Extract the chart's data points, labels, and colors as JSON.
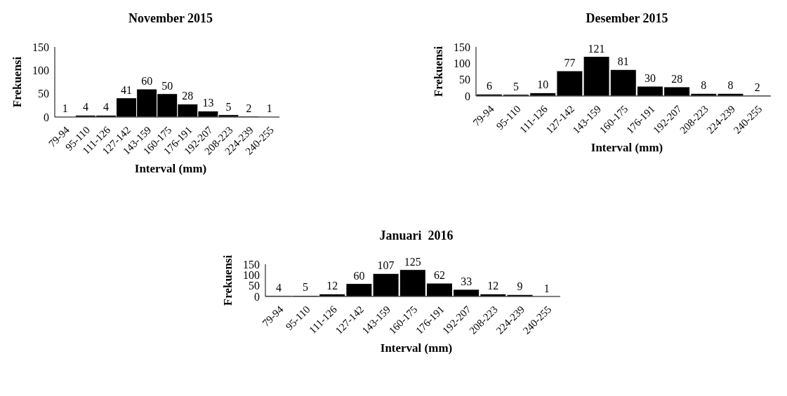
{
  "chart_data": [
    {
      "type": "bar",
      "title": "November 2015",
      "xlabel": "Interval (mm)",
      "ylabel": "Frekuensi",
      "categories": [
        "79-94",
        "95-110",
        "111-126",
        "127-142",
        "143-159",
        "160-175",
        "176-191",
        "192-207",
        "208-223",
        "224-239",
        "240-255"
      ],
      "values": [
        1,
        4,
        4,
        41,
        60,
        50,
        28,
        13,
        5,
        2,
        1
      ],
      "color": "#000000",
      "ylim": [
        0,
        150
      ],
      "yticks": [
        0,
        50,
        100,
        150
      ],
      "grid": false,
      "legend": false,
      "data_labels": true
    },
    {
      "type": "bar",
      "title": "Desember 2015",
      "xlabel": "Interval (mm)",
      "ylabel": "Frekuensi",
      "categories": [
        "79-94",
        "95-110",
        "111-126",
        "127-142",
        "143-159",
        "160-175",
        "176-191",
        "192-207",
        "208-223",
        "224-239",
        "240-255"
      ],
      "values": [
        6,
        5,
        10,
        77,
        121,
        81,
        30,
        28,
        8,
        8,
        2
      ],
      "color": "#000000",
      "ylim": [
        0,
        150
      ],
      "yticks": [
        0,
        50,
        100,
        150
      ],
      "grid": false,
      "legend": false,
      "data_labels": true
    },
    {
      "type": "bar",
      "title": "Januari  2016",
      "xlabel": "Interval (mm)",
      "ylabel": "Frekuensi",
      "categories": [
        "79-94",
        "95-110",
        "111-126",
        "127-142",
        "143-159",
        "160-175",
        "176-191",
        "192-207",
        "208-223",
        "224-239",
        "240-255"
      ],
      "values": [
        4,
        5,
        12,
        60,
        107,
        125,
        62,
        33,
        12,
        9,
        1
      ],
      "color": "#000000",
      "ylim": [
        0,
        150
      ],
      "yticks": [
        0,
        50,
        100,
        150
      ],
      "grid": false,
      "legend": false,
      "data_labels": true
    }
  ]
}
